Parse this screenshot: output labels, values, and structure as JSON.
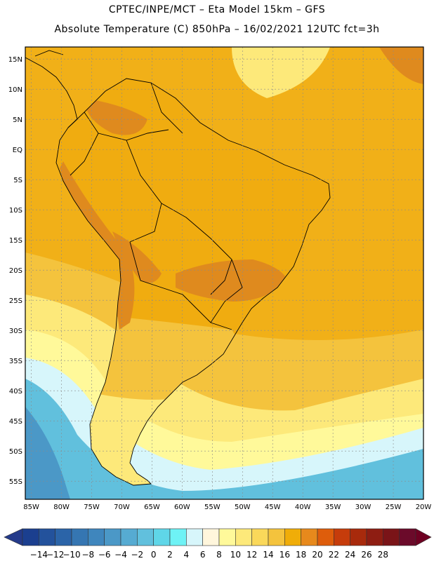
{
  "header": {
    "line1": "CPTEC/INPE/MCT –   Eta Model 15km – GFS",
    "line2": "Absolute Temperature (C) 850hPa – 16/02/2021 12UTC fct=3h"
  },
  "axes": {
    "lat_labels": [
      "15N",
      "10N",
      "5N",
      "EQ",
      "5S",
      "10S",
      "15S",
      "20S",
      "25S",
      "30S",
      "35S",
      "40S",
      "45S",
      "50S",
      "55S"
    ],
    "lat_values": [
      15,
      10,
      5,
      0,
      -5,
      -10,
      -15,
      -20,
      -25,
      -30,
      -35,
      -40,
      -45,
      -50,
      -55
    ],
    "lon_labels": [
      "85W",
      "80W",
      "75W",
      "70W",
      "65W",
      "60W",
      "55W",
      "50W",
      "45W",
      "40W",
      "35W",
      "30W",
      "25W",
      "20W"
    ],
    "lon_values": [
      -85,
      -80,
      -75,
      -70,
      -65,
      -60,
      -55,
      -50,
      -45,
      -40,
      -35,
      -30,
      -25,
      -20
    ],
    "lon_range": [
      -86,
      -20
    ],
    "lat_range": [
      -58,
      17
    ],
    "grid": "dotted"
  },
  "colorbar": {
    "labels": [
      "-14",
      "-12",
      "-10",
      "-8",
      "-6",
      "-4",
      "-2",
      "0",
      "2",
      "4",
      "6",
      "8",
      "10",
      "12",
      "14",
      "16",
      "18",
      "20",
      "22",
      "24",
      "26",
      "28"
    ],
    "colors": [
      "#1b3f8f",
      "#23529c",
      "#2b64a8",
      "#3576b2",
      "#3f86bd",
      "#4b98c7",
      "#56abd2",
      "#61c0dd",
      "#5fd6e8",
      "#6ef2f5",
      "#d7f6fb",
      "#fff6dc",
      "#fff99a",
      "#fde97a",
      "#fad85a",
      "#f4c33d",
      "#f0ad08",
      "#e7891c",
      "#de5d0b",
      "#c63c0b",
      "#a82a0c",
      "#8e1d12",
      "#7a1418",
      "#6b0a2a"
    ],
    "under_color": "#243a8a",
    "over_color": "#6e0022",
    "unit": "C"
  },
  "field_colors": {
    "ocean_north": "#f1b018",
    "land_hot": "#df8a1e",
    "land_warm": "#f0ac10",
    "south_mid": "#f4c33d",
    "south_cool": "#fde97a",
    "south_pale": "#fff99a",
    "cold_light": "#d7f6fb",
    "cold_cyan": "#61c0dd",
    "cold_blue": "#4b98c7",
    "border": "#000000"
  }
}
